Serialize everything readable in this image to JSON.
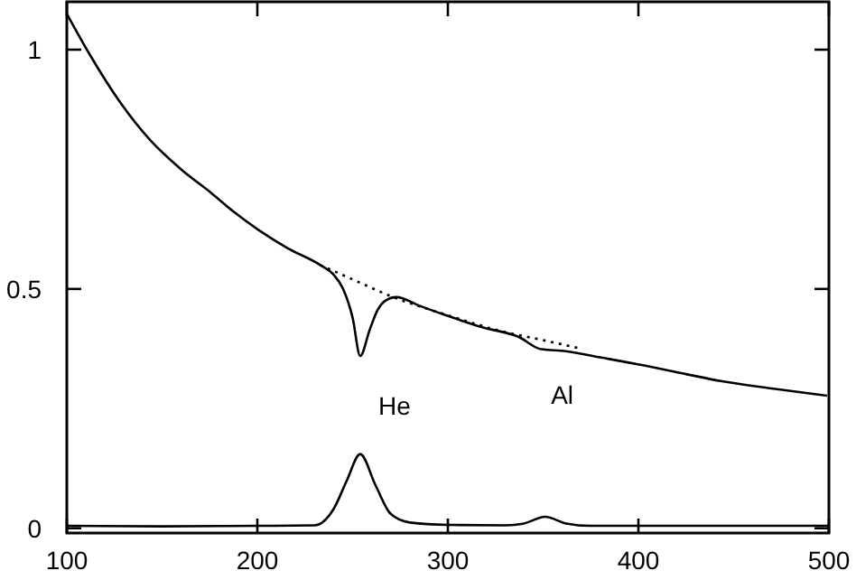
{
  "chart_data": {
    "type": "line",
    "xlim": [
      100,
      500
    ],
    "ylim": [
      -0.01,
      1.1
    ],
    "xticks": [
      100,
      200,
      300,
      400,
      500
    ],
    "yticks": [
      0,
      0.5,
      1
    ],
    "grid": false,
    "series": [
      {
        "color": "#000000",
        "line_style": "solid",
        "x": [
          100,
          112,
          128,
          144,
          160,
          176,
          188,
          200,
          216,
          233,
          240,
          245,
          250,
          254,
          259,
          263,
          267,
          273,
          285,
          299,
          318,
          337,
          349,
          362,
          380,
          403,
          425,
          444,
          470,
          499
        ],
        "values": [
          1.075,
          0.99,
          0.89,
          0.81,
          0.75,
          0.7,
          0.66,
          0.625,
          0.585,
          0.55,
          0.53,
          0.5,
          0.44,
          0.36,
          0.415,
          0.455,
          0.475,
          0.483,
          0.465,
          0.445,
          0.42,
          0.4,
          0.374,
          0.37,
          0.357,
          0.34,
          0.322,
          0.307,
          0.292,
          0.277
        ]
      },
      {
        "color": "#000000",
        "line_style": "dotted",
        "x": [
          233,
          250,
          270,
          300,
          330,
          350,
          370
        ],
        "values": [
          0.55,
          0.52,
          0.485,
          0.445,
          0.41,
          0.393,
          0.375
        ]
      },
      {
        "color": "#000000",
        "line_style": "solid",
        "x": [
          100,
          150,
          200,
          230,
          240,
          247,
          254,
          262,
          270,
          280,
          300,
          330,
          340,
          351,
          362,
          375,
          420,
          500
        ],
        "values": [
          0.005,
          0.004,
          0.005,
          0.006,
          0.04,
          0.1,
          0.155,
          0.09,
          0.03,
          0.012,
          0.007,
          0.006,
          0.01,
          0.024,
          0.01,
          0.005,
          0.005,
          0.005
        ]
      }
    ],
    "annotations": [
      "He",
      "Al"
    ]
  }
}
